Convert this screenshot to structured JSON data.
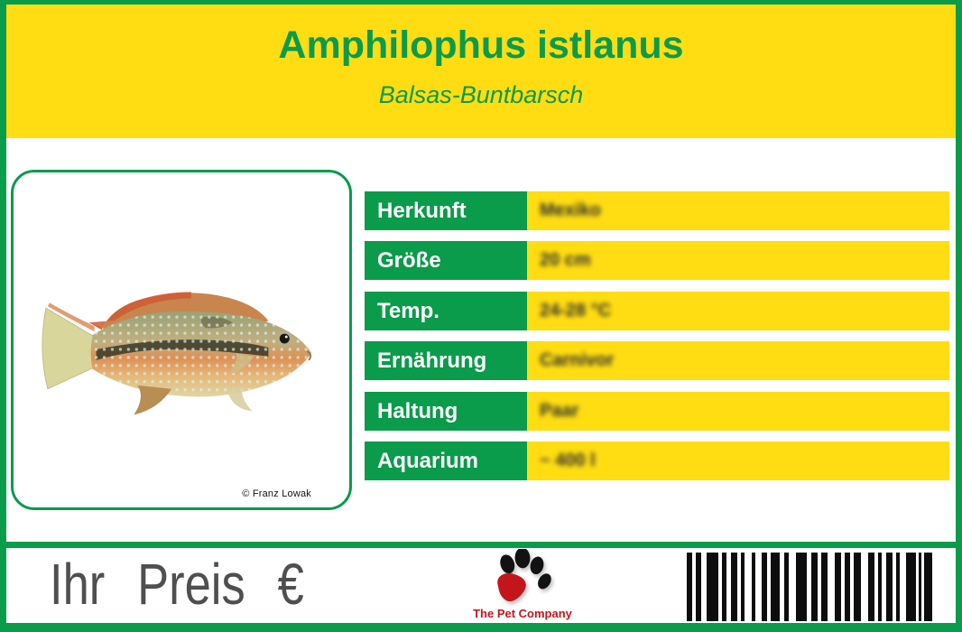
{
  "header": {
    "title": "Amphilophus istlanus",
    "subtitle": "Balsas-Buntbarsch"
  },
  "photo": {
    "credit": "© Franz Lowak"
  },
  "table": {
    "rows": [
      {
        "label": "Herkunft",
        "value": "Mexiko"
      },
      {
        "label": "Größe",
        "value": "20 cm"
      },
      {
        "label": "Temp.",
        "value": "24-28 °C"
      },
      {
        "label": "Ernährung",
        "value": "Carnivor"
      },
      {
        "label": "Haltung",
        "value": "Paar"
      },
      {
        "label": "Aquarium",
        "value": "~ 400 l"
      }
    ]
  },
  "footer": {
    "price_label": "Ihr Preis €",
    "brand": "The Pet Company",
    "barcode_bars": [
      [
        6,
        4
      ],
      [
        6,
        6
      ],
      [
        13,
        4
      ],
      [
        5,
        5
      ],
      [
        7,
        4
      ],
      [
        4,
        8
      ],
      [
        4,
        7
      ],
      [
        6,
        4
      ],
      [
        10,
        5
      ],
      [
        5,
        8
      ],
      [
        12,
        5
      ],
      [
        7,
        4
      ],
      [
        7,
        8
      ],
      [
        7,
        4
      ],
      [
        6,
        4
      ],
      [
        8,
        8
      ],
      [
        7,
        4
      ],
      [
        4,
        5
      ],
      [
        7,
        4
      ],
      [
        4,
        7
      ],
      [
        11,
        3
      ],
      [
        3,
        3
      ],
      [
        9,
        0
      ]
    ]
  },
  "colors": {
    "green": "#0a9b4b",
    "yellow": "#ffdd12",
    "red": "#c3161c",
    "gray": "#4f4f4f"
  }
}
